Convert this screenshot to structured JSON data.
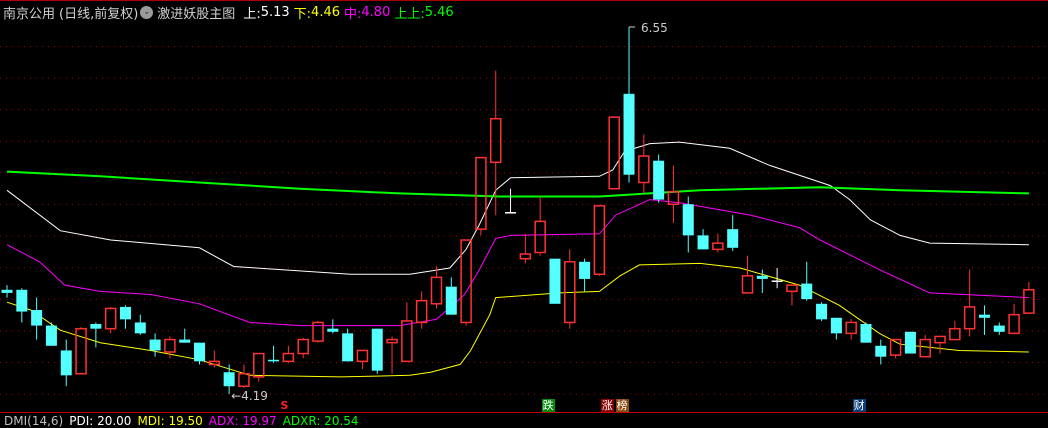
{
  "header": {
    "stock_name": "南京公用",
    "period": "(日线,前复权)",
    "indicator_name": "激进妖股主图",
    "upper_label": "上:",
    "upper_value": "5.13",
    "lower_label": "下:",
    "lower_value": "4.46",
    "mid_label": "中:",
    "mid_value": "4.80",
    "upper2_label": "上上:",
    "upper2_value": "5.46"
  },
  "colors": {
    "up": "#ff3232",
    "down": "#54ffff",
    "upper": "#ffffff",
    "mid": "#ff00ff",
    "lower": "#ffff00",
    "upper2": "#00ff00",
    "grid": "#a00000"
  },
  "annotations": {
    "high_label": "6.55",
    "low_label": "4.19"
  },
  "signals": [
    {
      "text": "S",
      "color": "#ff2020",
      "bar": 18.7
    },
    {
      "text": "跌",
      "color": "#0a8a0a",
      "bar": 36.5
    },
    {
      "text": "涨",
      "color": "#8b0000",
      "bar": 40.5
    },
    {
      "text": "榜",
      "color": "#8b4a10",
      "bar": 41.5
    },
    {
      "text": "财",
      "color": "#0a3c78",
      "bar": 57.5
    }
  ],
  "footer": {
    "dmi": "DMI(14,6)",
    "pdi": "PDI: 20.00",
    "mdi": "MDI: 19.50",
    "adx": "ADX: 19.97",
    "adxr": "ADXR: 20.54"
  },
  "chart_data": {
    "type": "candlestick",
    "ylim": [
      4.19,
      6.55
    ],
    "ohlc": [
      [
        4.86,
        4.89,
        4.81,
        4.84
      ],
      [
        4.86,
        4.87,
        4.65,
        4.72
      ],
      [
        4.73,
        4.81,
        4.54,
        4.63
      ],
      [
        4.63,
        4.65,
        4.5,
        4.5
      ],
      [
        4.47,
        4.54,
        4.24,
        4.31
      ],
      [
        4.32,
        4.62,
        4.32,
        4.61
      ],
      [
        4.64,
        4.65,
        4.49,
        4.61
      ],
      [
        4.61,
        4.75,
        4.58,
        4.74
      ],
      [
        4.75,
        4.76,
        4.61,
        4.67
      ],
      [
        4.65,
        4.7,
        4.57,
        4.58
      ],
      [
        4.54,
        4.58,
        4.43,
        4.47
      ],
      [
        4.46,
        4.56,
        4.42,
        4.54
      ],
      [
        4.54,
        4.61,
        4.52,
        4.52
      ],
      [
        4.52,
        4.52,
        4.38,
        4.4
      ],
      [
        4.38,
        4.47,
        4.36,
        4.4
      ],
      [
        4.33,
        4.38,
        4.19,
        4.24
      ],
      [
        4.24,
        4.38,
        4.23,
        4.32
      ],
      [
        4.3,
        4.45,
        4.27,
        4.45
      ],
      [
        4.41,
        4.5,
        4.39,
        4.4
      ],
      [
        4.4,
        4.5,
        4.39,
        4.45
      ],
      [
        4.45,
        4.55,
        4.42,
        4.54
      ],
      [
        4.53,
        4.66,
        4.52,
        4.65
      ],
      [
        4.61,
        4.67,
        4.58,
        4.59
      ],
      [
        4.58,
        4.61,
        4.4,
        4.4
      ],
      [
        4.4,
        4.47,
        4.35,
        4.47
      ],
      [
        4.61,
        4.61,
        4.32,
        4.34
      ],
      [
        4.52,
        4.56,
        4.32,
        4.54
      ],
      [
        4.4,
        4.78,
        4.4,
        4.66
      ],
      [
        4.65,
        4.85,
        4.61,
        4.79
      ],
      [
        4.77,
        5.01,
        4.74,
        4.94
      ],
      [
        4.88,
        4.94,
        4.7,
        4.7
      ],
      [
        4.65,
        5.18,
        4.63,
        5.18
      ],
      [
        5.25,
        5.71,
        5.21,
        5.71
      ],
      [
        5.68,
        6.27,
        5.34,
        5.96
      ],
      [
        5.36,
        5.51,
        5.36,
        5.36
      ],
      [
        5.06,
        5.22,
        5.03,
        5.09
      ],
      [
        5.1,
        5.46,
        5.08,
        5.3
      ],
      [
        5.06,
        5.06,
        4.77,
        4.77
      ],
      [
        4.65,
        5.12,
        4.61,
        5.04
      ],
      [
        5.04,
        5.06,
        4.85,
        4.93
      ],
      [
        4.96,
        5.4,
        4.95,
        5.4
      ],
      [
        5.51,
        5.97,
        5.51,
        5.97
      ],
      [
        6.12,
        6.55,
        5.55,
        5.6
      ],
      [
        5.55,
        5.86,
        5.48,
        5.72
      ],
      [
        5.69,
        5.73,
        5.42,
        5.44
      ],
      [
        5.41,
        5.66,
        5.29,
        5.49
      ],
      [
        5.41,
        5.46,
        5.1,
        5.21
      ],
      [
        5.21,
        5.25,
        5.12,
        5.12
      ],
      [
        5.12,
        5.22,
        5.1,
        5.16
      ],
      [
        5.25,
        5.34,
        5.11,
        5.13
      ],
      [
        4.84,
        5.08,
        4.84,
        4.95
      ],
      [
        4.95,
        4.99,
        4.84,
        4.93
      ],
      [
        4.92,
        5.0,
        4.87,
        4.92
      ],
      [
        4.85,
        4.89,
        4.76,
        4.89
      ],
      [
        4.9,
        5.04,
        4.79,
        4.8
      ],
      [
        4.77,
        4.78,
        4.66,
        4.67
      ],
      [
        4.68,
        4.68,
        4.54,
        4.58
      ],
      [
        4.58,
        4.67,
        4.54,
        4.65
      ],
      [
        4.64,
        4.65,
        4.52,
        4.52
      ],
      [
        4.5,
        4.54,
        4.38,
        4.43
      ],
      [
        4.44,
        4.54,
        4.42,
        4.54
      ],
      [
        4.59,
        4.59,
        4.45,
        4.45
      ],
      [
        4.43,
        4.57,
        4.43,
        4.54
      ],
      [
        4.52,
        4.56,
        4.45,
        4.56
      ],
      [
        4.54,
        4.66,
        4.54,
        4.61
      ],
      [
        4.61,
        4.99,
        4.56,
        4.75
      ],
      [
        4.7,
        4.76,
        4.57,
        4.68
      ],
      [
        4.63,
        4.65,
        4.57,
        4.59
      ],
      [
        4.58,
        4.77,
        4.58,
        4.7
      ],
      [
        4.71,
        4.91,
        4.71,
        4.86
      ]
    ],
    "lines": {
      "upper": [
        [
          0,
          5.5
        ],
        [
          3.6,
          5.24
        ],
        [
          7,
          5.18
        ],
        [
          13,
          5.13
        ],
        [
          15.3,
          5.01
        ],
        [
          23.2,
          4.96
        ],
        [
          27.2,
          4.96
        ],
        [
          29.9,
          5.0
        ],
        [
          31,
          5.12
        ],
        [
          31.9,
          5.28
        ],
        [
          33,
          5.5
        ],
        [
          34,
          5.58
        ],
        [
          40,
          5.59
        ],
        [
          40.9,
          5.63
        ],
        [
          41.7,
          5.75
        ],
        [
          43.4,
          5.8
        ],
        [
          45.4,
          5.81
        ],
        [
          48.8,
          5.77
        ],
        [
          51.5,
          5.66
        ],
        [
          55.6,
          5.53
        ],
        [
          56.9,
          5.44
        ],
        [
          58.3,
          5.31
        ],
        [
          60.3,
          5.21
        ],
        [
          62.3,
          5.16
        ],
        [
          69,
          5.15
        ]
      ],
      "mid": [
        [
          0,
          5.15
        ],
        [
          2.2,
          5.04
        ],
        [
          3.9,
          4.89
        ],
        [
          6.3,
          4.85
        ],
        [
          9.7,
          4.83
        ],
        [
          13,
          4.77
        ],
        [
          16.4,
          4.65
        ],
        [
          19.8,
          4.63
        ],
        [
          26.5,
          4.63
        ],
        [
          29,
          4.67
        ],
        [
          30.9,
          4.83
        ],
        [
          31.9,
          4.99
        ],
        [
          33,
          5.19
        ],
        [
          34,
          5.21
        ],
        [
          40,
          5.22
        ],
        [
          41.1,
          5.34
        ],
        [
          43.4,
          5.44
        ],
        [
          45.4,
          5.42
        ],
        [
          50.2,
          5.34
        ],
        [
          53.5,
          5.26
        ],
        [
          54.9,
          5.18
        ],
        [
          58.9,
          4.99
        ],
        [
          62.3,
          4.84
        ],
        [
          69,
          4.81
        ]
      ],
      "lower": [
        [
          0,
          4.78
        ],
        [
          1.6,
          4.73
        ],
        [
          3.6,
          4.6
        ],
        [
          6.3,
          4.52
        ],
        [
          9.7,
          4.47
        ],
        [
          13,
          4.41
        ],
        [
          16.4,
          4.31
        ],
        [
          22.5,
          4.3
        ],
        [
          27.2,
          4.31
        ],
        [
          28.6,
          4.33
        ],
        [
          30.6,
          4.38
        ],
        [
          31.3,
          4.47
        ],
        [
          32.6,
          4.7
        ],
        [
          33,
          4.81
        ],
        [
          37.3,
          4.84
        ],
        [
          40,
          4.85
        ],
        [
          41.4,
          4.95
        ],
        [
          42.7,
          5.02
        ],
        [
          46.8,
          5.03
        ],
        [
          49.5,
          5.0
        ],
        [
          53.5,
          4.89
        ],
        [
          56.2,
          4.76
        ],
        [
          58.9,
          4.58
        ],
        [
          60.3,
          4.51
        ],
        [
          64.3,
          4.47
        ],
        [
          69,
          4.46
        ]
      ],
      "upper2": [
        [
          0,
          5.62
        ],
        [
          6.3,
          5.59
        ],
        [
          13,
          5.55
        ],
        [
          19.8,
          5.51
        ],
        [
          26.5,
          5.48
        ],
        [
          33.3,
          5.46
        ],
        [
          40,
          5.46
        ],
        [
          46.8,
          5.5
        ],
        [
          54.9,
          5.52
        ],
        [
          60.3,
          5.5
        ],
        [
          69,
          5.48
        ]
      ]
    },
    "high_point": {
      "bar": 42,
      "value": 6.55
    },
    "low_point": {
      "bar": 15,
      "value": 4.19
    },
    "grid": true
  }
}
